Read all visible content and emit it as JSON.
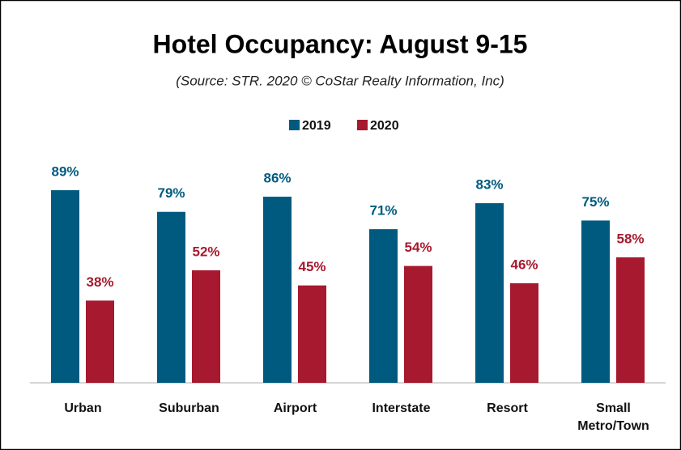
{
  "chart_data": {
    "type": "bar",
    "title": "Hotel Occupancy: August 9-15",
    "subtitle": "(Source: STR. 2020 © CoStar Realty Information, Inc)",
    "categories": [
      "Urban",
      "Suburban",
      "Airport",
      "Interstate",
      "Resort",
      "Small Metro/Town"
    ],
    "series": [
      {
        "name": "2019",
        "color": "#005a7f",
        "values": [
          89,
          79,
          86,
          71,
          83,
          75
        ],
        "value_labels": [
          "89%",
          "79%",
          "86%",
          "71%",
          "83%",
          "75%"
        ]
      },
      {
        "name": "2020",
        "color": "#a6192e",
        "values": [
          38,
          52,
          45,
          54,
          46,
          58
        ],
        "value_labels": [
          "38%",
          "52%",
          "45%",
          "54%",
          "46%",
          "58%"
        ]
      }
    ],
    "legend": "top"
  }
}
